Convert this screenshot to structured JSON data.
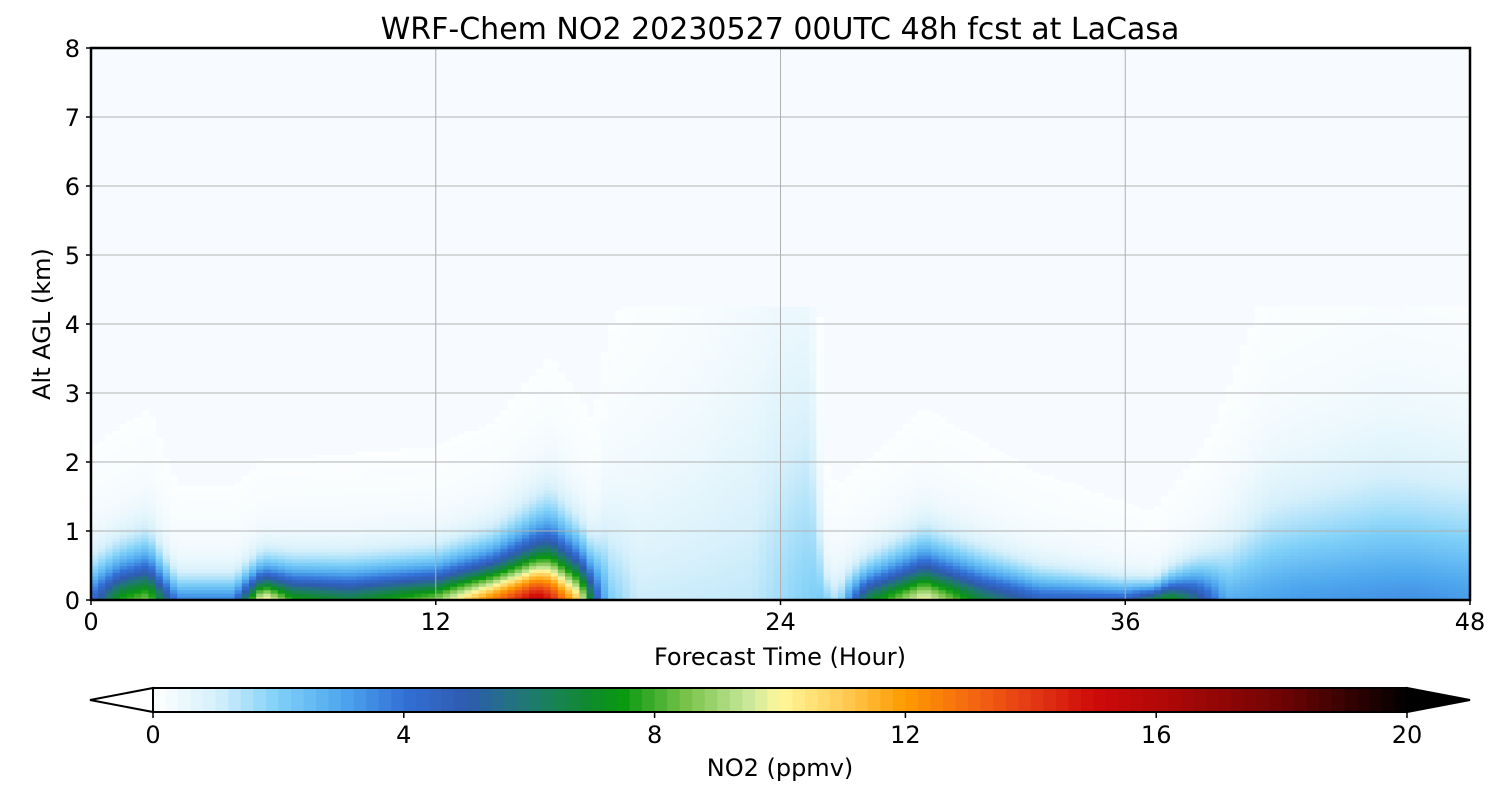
{
  "chart_data": {
    "type": "heatmap",
    "title": "WRF-Chem NO2  20230527 00UTC 48h fcst at LaCasa",
    "xlabel": "Forecast Time (Hour)",
    "ylabel": "Alt AGL (km)",
    "xlim": [
      0,
      48
    ],
    "ylim": [
      0,
      8
    ],
    "x_ticks": [
      0,
      12,
      24,
      36,
      48
    ],
    "y_ticks": [
      0,
      1,
      2,
      3,
      4,
      5,
      6,
      7,
      8
    ],
    "grid": true,
    "colorbar": {
      "label": "NO2  (ppmv)",
      "min": 0,
      "max": 20,
      "ticks": [
        0,
        4,
        8,
        12,
        16,
        20
      ],
      "extend": "both",
      "stops": [
        {
          "v": 0,
          "c": "#ffffff"
        },
        {
          "v": 1,
          "c": "#d6f0fb"
        },
        {
          "v": 2,
          "c": "#7fd0f8"
        },
        {
          "v": 3,
          "c": "#4fa8ee"
        },
        {
          "v": 4,
          "c": "#3270d6"
        },
        {
          "v": 5,
          "c": "#2f5bb0"
        },
        {
          "v": 6,
          "c": "#1f7a70"
        },
        {
          "v": 7,
          "c": "#0f8b2a"
        },
        {
          "v": 7.5,
          "c": "#0a9a10"
        },
        {
          "v": 8.5,
          "c": "#78c24a"
        },
        {
          "v": 9.5,
          "c": "#c9e89a"
        },
        {
          "v": 10,
          "c": "#fff79a"
        },
        {
          "v": 11,
          "c": "#ffcc55"
        },
        {
          "v": 12,
          "c": "#ff9a00"
        },
        {
          "v": 13,
          "c": "#f56a10"
        },
        {
          "v": 14,
          "c": "#e43a15"
        },
        {
          "v": 15,
          "c": "#cf0a0a"
        },
        {
          "v": 16,
          "c": "#b40808"
        },
        {
          "v": 18,
          "c": "#700404"
        },
        {
          "v": 20,
          "c": "#000000"
        }
      ]
    }
  }
}
